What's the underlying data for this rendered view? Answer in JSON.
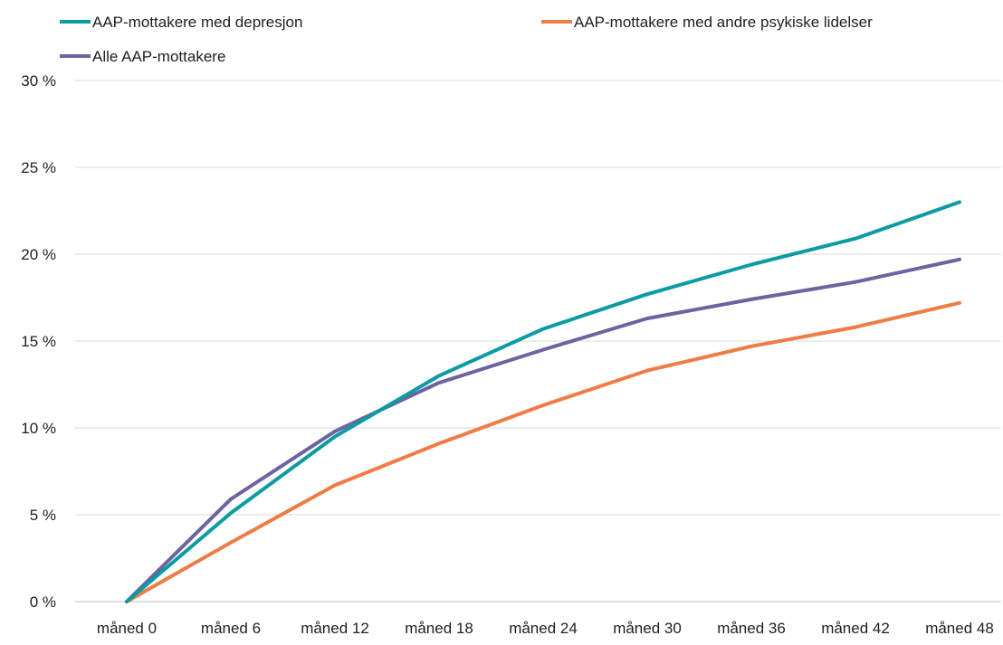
{
  "chart_data": {
    "type": "line",
    "title": "",
    "xlabel": "",
    "ylabel": "",
    "categories": [
      "måned 0",
      "måned 6",
      "måned 12",
      "måned 18",
      "måned 24",
      "måned 30",
      "måned 36",
      "måned 42",
      "måned 48"
    ],
    "y_ticks": [
      "0 %",
      "5 %",
      "10 %",
      "15 %",
      "20 %",
      "25 %",
      "30 %"
    ],
    "ylim": [
      0,
      30
    ],
    "y_unit": "%",
    "grid": "horizontal",
    "legend_position": "top",
    "series": [
      {
        "name": "AAP-mottakere med depresjon",
        "color": "#0a9ba3",
        "values": [
          0,
          5.1,
          9.5,
          13.0,
          15.7,
          17.7,
          19.4,
          20.9,
          23.0
        ]
      },
      {
        "name": "AAP-mottakere med andre psykiske lidelser",
        "color": "#ef7b45",
        "values": [
          0,
          3.4,
          6.7,
          9.1,
          11.3,
          13.3,
          14.7,
          15.8,
          17.2
        ]
      },
      {
        "name": "Alle AAP-mottakere",
        "color": "#6b64a0",
        "values": [
          0,
          5.9,
          9.8,
          12.6,
          14.5,
          16.3,
          17.4,
          18.4,
          19.7
        ]
      }
    ]
  }
}
